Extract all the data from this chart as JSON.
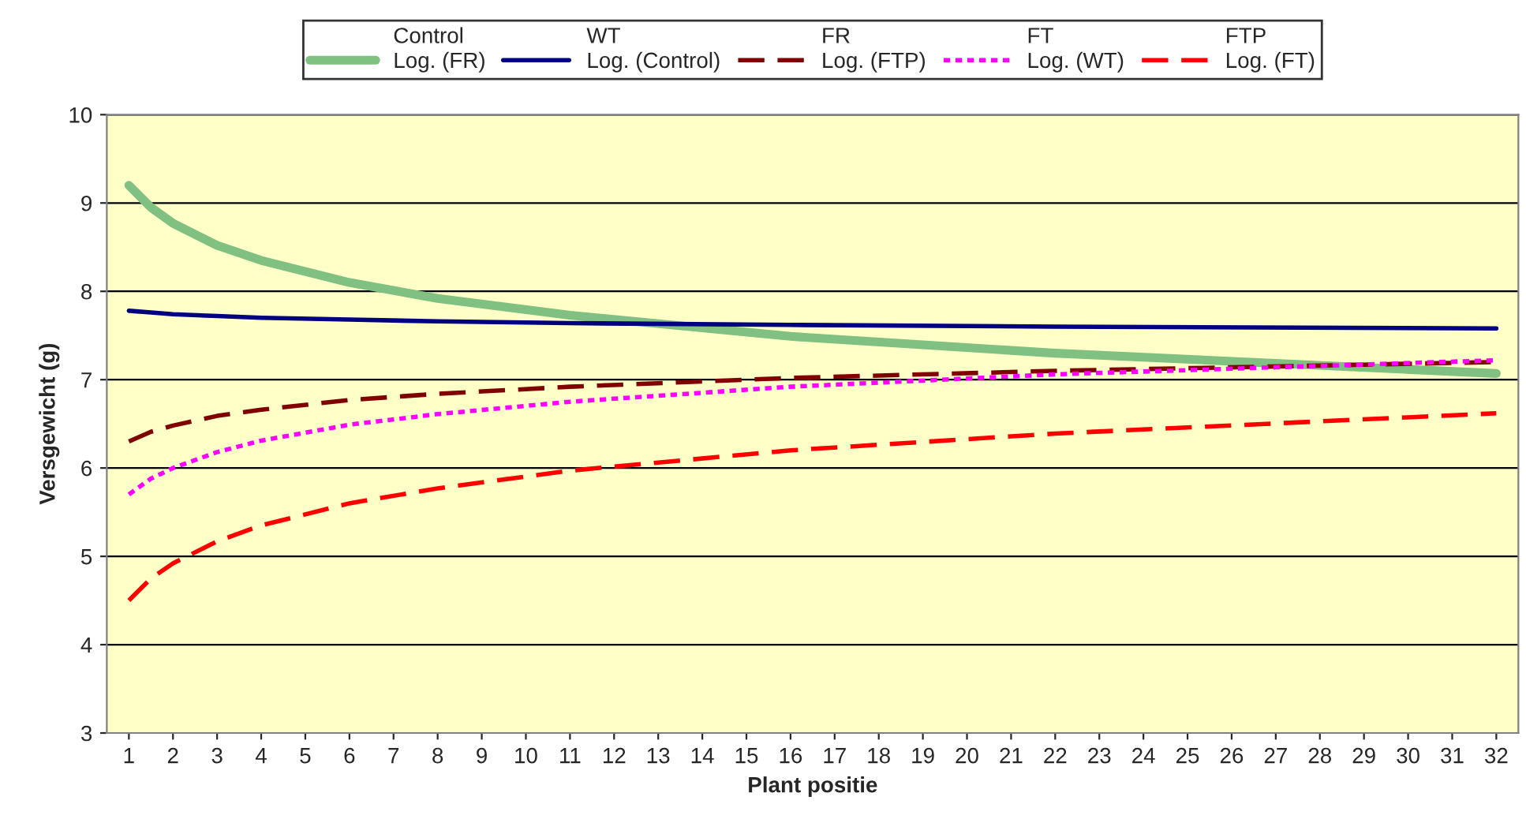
{
  "chart_data": {
    "type": "line",
    "xlabel": "Plant positie",
    "ylabel": "Versgewicht (g)",
    "xlim": [
      0.5,
      32.5
    ],
    "xticks": [
      1,
      2,
      3,
      4,
      5,
      6,
      7,
      8,
      9,
      10,
      11,
      12,
      13,
      14,
      15,
      16,
      17,
      18,
      19,
      20,
      21,
      22,
      23,
      24,
      25,
      26,
      27,
      28,
      29,
      30,
      31,
      32
    ],
    "ylim": [
      3,
      10
    ],
    "yticks": [
      3,
      4,
      5,
      6,
      7,
      8,
      9,
      10
    ],
    "grid": "y",
    "legend": "top",
    "series": [
      {
        "name": "Control"
      },
      {
        "name": "Log. (FR)",
        "color": "#80c080",
        "line_style": "solid",
        "x": [
          1,
          1.5,
          2,
          3,
          4,
          6,
          8,
          11,
          16,
          22,
          32
        ],
        "values": [
          9.2,
          8.95,
          8.77,
          8.52,
          8.35,
          8.1,
          7.92,
          7.73,
          7.49,
          7.3,
          7.07
        ]
      },
      {
        "name": "WT"
      },
      {
        "name": "Log. (Control)",
        "color": "#000080",
        "line_style": "solid",
        "x": [
          1,
          1.5,
          2,
          3,
          4,
          6,
          8,
          11,
          16,
          22,
          32
        ],
        "values": [
          7.78,
          7.76,
          7.74,
          7.72,
          7.7,
          7.68,
          7.66,
          7.64,
          7.62,
          7.6,
          7.58
        ]
      },
      {
        "name": "FR"
      },
      {
        "name": "Log. (FTP)",
        "color": "#800000",
        "line_style": "dashed",
        "x": [
          1,
          1.5,
          2,
          3,
          4,
          6,
          8,
          11,
          16,
          22,
          32
        ],
        "values": [
          6.3,
          6.41,
          6.48,
          6.59,
          6.66,
          6.77,
          6.84,
          6.92,
          7.02,
          7.1,
          7.2
        ]
      },
      {
        "name": "FT"
      },
      {
        "name": "Log. (WT)",
        "color": "#ff00ff",
        "line_style": "dotted",
        "x": [
          1,
          1.5,
          2,
          3,
          4,
          6,
          8,
          11,
          16,
          22,
          32
        ],
        "values": [
          5.7,
          5.88,
          6.0,
          6.18,
          6.31,
          6.49,
          6.61,
          6.75,
          6.92,
          7.06,
          7.22
        ]
      },
      {
        "name": "FTP"
      },
      {
        "name": "Log. (FT)",
        "color": "#ff0000",
        "line_style": "dashed",
        "x": [
          1,
          1.5,
          2,
          3,
          4,
          6,
          8,
          11,
          16,
          22,
          32
        ],
        "values": [
          4.5,
          4.75,
          4.92,
          5.17,
          5.35,
          5.6,
          5.77,
          5.97,
          6.2,
          6.39,
          6.62
        ]
      }
    ]
  }
}
